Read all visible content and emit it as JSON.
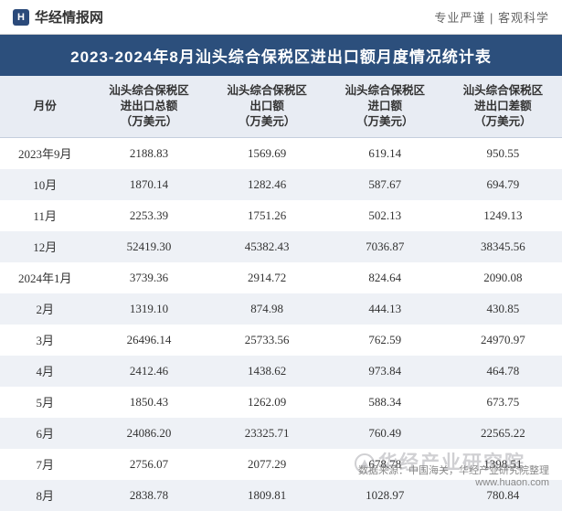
{
  "header": {
    "brand_icon_text": "H",
    "brand_text": "华经情报网",
    "right_text": "专业严谨 | 客观科学"
  },
  "title": "2023-2024年8月汕头综合保税区进出口额月度情况统计表",
  "table": {
    "columns": [
      "月份",
      "汕头综合保税区\n进出口总额\n（万美元）",
      "汕头综合保税区\n出口额\n（万美元）",
      "汕头综合保税区\n进口额\n（万美元）",
      "汕头综合保税区\n进出口差额\n（万美元）"
    ],
    "rows": [
      [
        "2023年9月",
        "2188.83",
        "1569.69",
        "619.14",
        "950.55"
      ],
      [
        "10月",
        "1870.14",
        "1282.46",
        "587.67",
        "694.79"
      ],
      [
        "11月",
        "2253.39",
        "1751.26",
        "502.13",
        "1249.13"
      ],
      [
        "12月",
        "52419.30",
        "45382.43",
        "7036.87",
        "38345.56"
      ],
      [
        "2024年1月",
        "3739.36",
        "2914.72",
        "824.64",
        "2090.08"
      ],
      [
        "2月",
        "1319.10",
        "874.98",
        "444.13",
        "430.85"
      ],
      [
        "3月",
        "26496.14",
        "25733.56",
        "762.59",
        "24970.97"
      ],
      [
        "4月",
        "2412.46",
        "1438.62",
        "973.84",
        "464.78"
      ],
      [
        "5月",
        "1850.43",
        "1262.09",
        "588.34",
        "673.75"
      ],
      [
        "6月",
        "24086.20",
        "23325.71",
        "760.49",
        "22565.22"
      ],
      [
        "7月",
        "2756.07",
        "2077.29",
        "678.78",
        "1398.51"
      ],
      [
        "8月",
        "2838.78",
        "1809.81",
        "1028.97",
        "780.84"
      ]
    ]
  },
  "footer": {
    "source": "数据来源：中国海关，华经产业研究院整理",
    "url": "www.huaon.com"
  },
  "watermark": "华经产业研究院",
  "style": {
    "title_bg": "#2c4f7c",
    "title_color": "#ffffff",
    "header_bg": "#e8ecf3",
    "row_odd_bg": "#ffffff",
    "row_even_bg": "#eef1f6",
    "text_color": "#333333",
    "footer_color": "#888888",
    "watermark_color": "rgba(100,100,110,0.30)",
    "font_family": "Microsoft YaHei, SimSun, sans-serif",
    "title_fontsize": 17,
    "header_fontsize": 12.5,
    "cell_fontsize": 13,
    "footer_fontsize": 11
  }
}
